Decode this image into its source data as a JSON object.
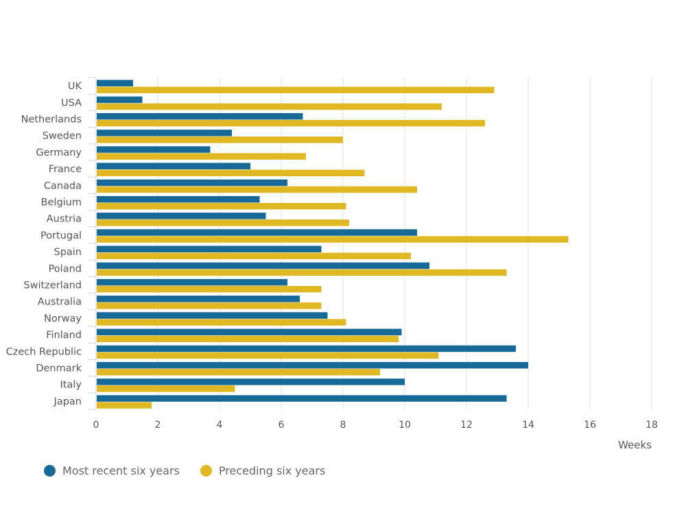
{
  "chart_data": {
    "type": "bar",
    "orientation": "horizontal",
    "categories": [
      "UK",
      "USA",
      "Netherlands",
      "Sweden",
      "Germany",
      "France",
      "Canada",
      "Belgium",
      "Austria",
      "Portugal",
      "Spain",
      "Poland",
      "Switzerland",
      "Australia",
      "Norway",
      "Finland",
      "Czech Republic",
      "Denmark",
      "Italy",
      "Japan"
    ],
    "series": [
      {
        "name": "Most recent six years",
        "color": "#176a98",
        "values": [
          1.2,
          1.5,
          6.7,
          4.4,
          3.7,
          5.0,
          6.2,
          5.3,
          5.5,
          10.4,
          7.3,
          10.8,
          6.2,
          6.6,
          7.5,
          9.9,
          13.6,
          14.0,
          10.0,
          13.3
        ]
      },
      {
        "name": "Preceding six years",
        "color": "#e0b824",
        "values": [
          12.9,
          11.2,
          12.6,
          8.0,
          6.8,
          8.7,
          10.4,
          8.1,
          8.2,
          15.3,
          10.2,
          13.3,
          7.3,
          7.3,
          8.1,
          9.8,
          11.1,
          9.2,
          4.5,
          1.8
        ]
      }
    ],
    "xlabel": "Weeks",
    "xlim": [
      0,
      18
    ],
    "xticks": [
      "0",
      "2",
      "4",
      "6",
      "8",
      "10",
      "12",
      "14",
      "16",
      "18"
    ],
    "grid": "vertical",
    "legend": "bottom-left"
  }
}
